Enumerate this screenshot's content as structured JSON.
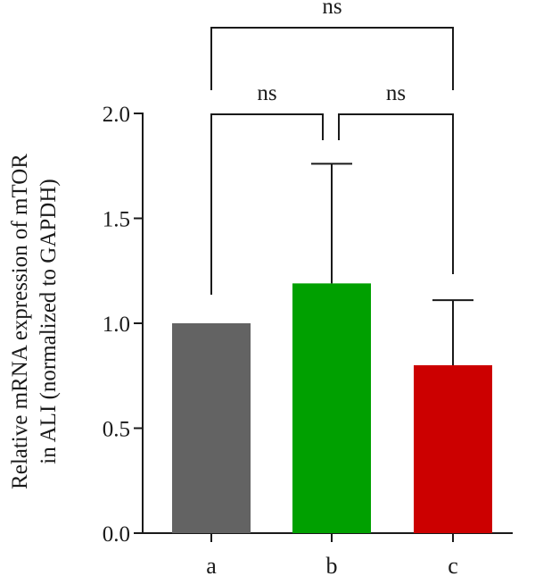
{
  "chart_data": {
    "type": "bar",
    "categories": [
      "a",
      "b",
      "c"
    ],
    "values": [
      1.0,
      1.19,
      0.8
    ],
    "error_upper": [
      0.0,
      0.57,
      0.31
    ],
    "colors": [
      "#636363",
      "#00a000",
      "#cc0000"
    ],
    "ylim": [
      0,
      2.0
    ],
    "yticks": [
      "0.0",
      "0.5",
      "1.0",
      "1.5",
      "2.0"
    ],
    "ylabel_line1": "Relative mRNA expression of mTOR",
    "ylabel_line2": "in ALI (normalized to GAPDH)",
    "grid": false,
    "significance": [
      {
        "from": 0,
        "to": 1,
        "label": "ns"
      },
      {
        "from": 1,
        "to": 2,
        "label": "ns"
      },
      {
        "from": 0,
        "to": 2,
        "label": "ns"
      }
    ]
  }
}
